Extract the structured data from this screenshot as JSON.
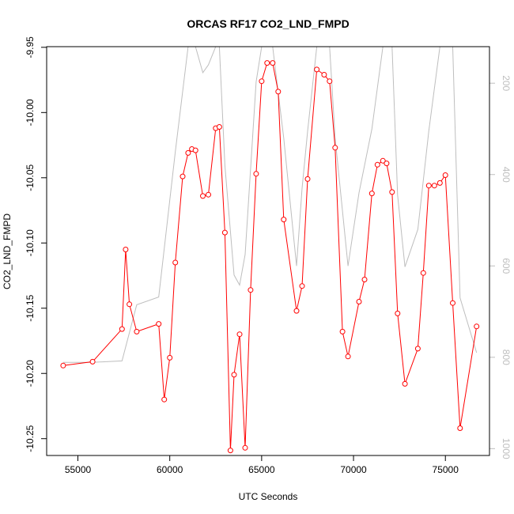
{
  "chart_data": {
    "type": "line",
    "title": "ORCAS RF17 CO2_LND_FMPD",
    "xlabel": "UTC Seconds",
    "ylabel": "CO2_LND_FMPD",
    "xlim": [
      53300,
      77400
    ],
    "ylim": [
      -10.2629,
      -9.9495
    ],
    "y2lim": [
      1015,
      120
    ],
    "y2_reversed": true,
    "x_ticks": [
      55000,
      60000,
      65000,
      70000,
      75000
    ],
    "x_tick_labels": [
      "55000",
      "60000",
      "65000",
      "70000",
      "75000"
    ],
    "y_ticks": [
      -10.25,
      -10.2,
      -10.15,
      -10.1,
      -10.05,
      -10.0,
      -9.95
    ],
    "y_tick_labels": [
      "-10.25",
      "-10.20",
      "-10.15",
      "-10.10",
      "-10.05",
      "-10.00",
      "-9.95"
    ],
    "y2_ticks": [
      200,
      400,
      600,
      800,
      1000
    ],
    "y2_tick_labels": [
      "200",
      "400",
      "600",
      "800",
      "1000"
    ],
    "series": [
      {
        "axis": "left",
        "color": "#ff0000",
        "marker": "open-circle",
        "x": [
          54200,
          55800,
          57400,
          57600,
          57800,
          58200,
          59400,
          59700,
          60000,
          60300,
          60700,
          61000,
          61200,
          61400,
          61800,
          62100,
          62500,
          62700,
          63000,
          63300,
          63500,
          63800,
          64100,
          64400,
          64700,
          65000,
          65300,
          65600,
          65900,
          66200,
          66900,
          67200,
          67500,
          68000,
          68400,
          68700,
          69000,
          69400,
          69700,
          70300,
          70600,
          71000,
          71300,
          71600,
          71800,
          72100,
          72400,
          72800,
          73500,
          73800,
          74100,
          74400,
          74700,
          75000,
          75400,
          75800,
          76700
        ],
        "y": [
          -10.194,
          -10.191,
          -10.166,
          -10.105,
          -10.147,
          -10.168,
          -10.162,
          -10.22,
          -10.188,
          -10.115,
          -10.049,
          -10.031,
          -10.028,
          -10.029,
          -10.064,
          -10.063,
          -10.012,
          -10.011,
          -10.092,
          -10.259,
          -10.201,
          -10.17,
          -10.257,
          -10.136,
          -10.047,
          -9.976,
          -9.962,
          -9.962,
          -9.984,
          -10.082,
          -10.152,
          -10.133,
          -10.051,
          -9.967,
          -9.971,
          -9.976,
          -10.027,
          -10.168,
          -10.187,
          -10.145,
          -10.128,
          -10.062,
          -10.04,
          -10.037,
          -10.039,
          -10.061,
          -10.154,
          -10.208,
          -10.181,
          -10.123,
          -10.056,
          -10.056,
          -10.054,
          -10.048,
          -10.146,
          -10.242,
          -10.164
        ]
      },
      {
        "axis": "right",
        "color": "#bebebe",
        "x": [
          54200,
          55800,
          57400,
          58200,
          59400,
          60300,
          61000,
          61400,
          61800,
          62100,
          62500,
          62700,
          63000,
          63500,
          63800,
          64100,
          64700,
          65000,
          65600,
          66200,
          66900,
          67200,
          67500,
          68000,
          68400,
          68700,
          69000,
          69700,
          70300,
          71000,
          71600,
          71800,
          72100,
          72400,
          72800,
          73500,
          74100,
          74700,
          75000,
          75400,
          75800,
          76700
        ],
        "y": [
          811,
          811,
          808,
          685,
          668,
          350,
          120,
          120,
          177,
          160,
          120,
          120,
          380,
          620,
          642,
          575,
          197,
          120,
          120,
          320,
          600,
          430,
          305,
          120,
          120,
          120,
          320,
          600,
          440,
          300,
          120,
          120,
          120,
          445,
          602,
          520,
          304,
          120,
          120,
          120,
          670,
          790
        ]
      }
    ]
  }
}
